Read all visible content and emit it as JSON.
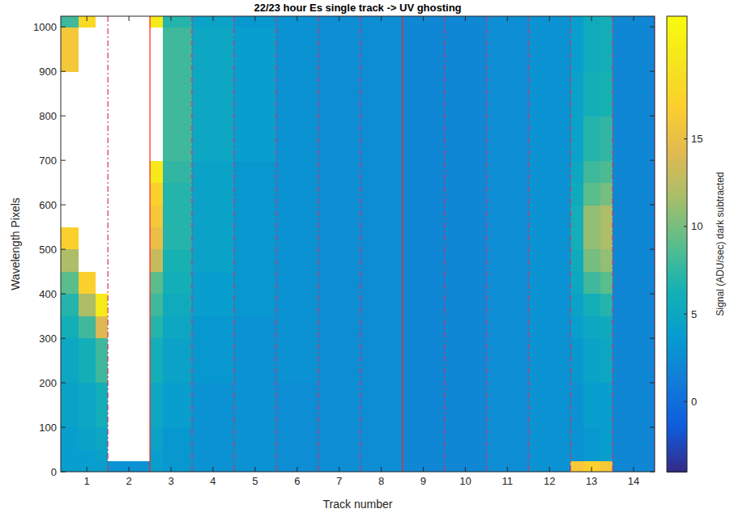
{
  "chart_data": {
    "type": "heatmap",
    "title": "22/23 hour Es single track -> UV ghosting",
    "x_label": "Track number",
    "y_label": "Wavelength Pixels",
    "colorbar_label": "Signal (ADU/sec) dark subtracted",
    "xlim": [
      0.38,
      14.5
    ],
    "ylim": [
      0,
      1024
    ],
    "xticks": [
      1,
      2,
      3,
      4,
      5,
      6,
      7,
      8,
      9,
      10,
      11,
      12,
      13,
      14
    ],
    "yticks": [
      0,
      100,
      200,
      300,
      400,
      500,
      600,
      700,
      800,
      900,
      1000
    ],
    "clim": [
      -4,
      22
    ],
    "cticks": [
      0,
      5,
      10,
      15
    ],
    "x_edges": [
      0.38,
      0.8,
      1.2,
      1.5,
      2.5,
      2.8,
      3.5,
      4.5,
      5.5,
      6.5,
      7.5,
      8.5,
      9.5,
      10.5,
      11.5,
      12.5,
      12.8,
      13.2,
      13.5,
      14.5
    ],
    "y_edges": [
      0,
      25,
      50,
      100,
      200,
      300,
      350,
      400,
      450,
      500,
      550,
      600,
      650,
      700,
      800,
      900,
      1000,
      1024
    ],
    "z": [
      [
        4,
        4,
        4,
        3,
        4,
        3.5,
        3,
        3,
        2.5,
        2.5,
        2.5,
        2,
        2,
        2.5,
        3,
        16,
        17,
        16,
        2
      ],
      [
        4,
        4,
        4.5,
        30,
        4,
        3.5,
        3,
        3,
        2.5,
        2.5,
        2.5,
        2,
        2,
        2.5,
        3,
        3,
        3.5,
        4,
        2
      ],
      [
        4,
        4.5,
        5,
        30,
        4.5,
        3.5,
        3,
        3,
        2.5,
        2.5,
        2.5,
        2,
        2,
        2.5,
        3,
        3,
        3.5,
        4,
        2
      ],
      [
        4.5,
        5,
        6,
        30,
        5,
        4,
        3,
        3,
        2.5,
        2.5,
        2.5,
        2,
        2,
        2.5,
        3,
        3,
        4,
        4,
        2
      ],
      [
        5,
        6,
        8,
        30,
        6,
        4.5,
        3.5,
        3,
        3,
        2.5,
        2.5,
        2,
        2,
        2.5,
        3,
        3.5,
        4.5,
        5,
        2
      ],
      [
        6,
        8,
        14,
        30,
        7,
        5,
        3.5,
        3,
        3,
        2.5,
        2.5,
        2,
        2,
        2.5,
        3,
        4,
        5,
        5.5,
        2
      ],
      [
        7,
        12,
        20,
        30,
        8,
        5.5,
        4,
        3.5,
        3,
        2.5,
        2.5,
        2,
        2,
        2.5,
        3,
        4.5,
        6,
        7,
        2
      ],
      [
        9,
        17,
        30,
        30,
        9,
        6,
        4,
        3.5,
        3,
        2.5,
        2.5,
        2,
        2,
        2.5,
        3,
        5,
        8,
        9,
        2
      ],
      [
        12,
        30,
        30,
        30,
        13,
        6.5,
        4.5,
        3.5,
        3,
        2.5,
        2.5,
        2,
        2,
        2.5,
        3,
        5.5,
        10,
        11,
        2
      ],
      [
        17,
        30,
        30,
        30,
        15,
        7,
        4.5,
        3.5,
        3,
        2.5,
        2.5,
        2,
        2,
        2.5,
        3,
        6,
        11,
        12,
        2
      ],
      [
        30,
        30,
        30,
        30,
        16,
        7,
        4.5,
        3.5,
        3,
        2.5,
        2.5,
        2,
        2,
        2.5,
        3,
        6,
        11,
        12,
        2
      ],
      [
        30,
        30,
        30,
        30,
        17,
        7,
        4.5,
        3.5,
        3,
        2.5,
        2.5,
        2,
        2,
        2.5,
        3,
        5.5,
        9,
        10,
        2
      ],
      [
        30,
        30,
        30,
        30,
        20,
        7.5,
        4.5,
        3.5,
        3,
        2.5,
        2.5,
        2,
        2,
        2.5,
        3,
        5,
        8,
        8.5,
        2
      ],
      [
        30,
        30,
        30,
        30,
        30,
        8,
        5,
        4,
        3,
        2.5,
        2.5,
        2,
        2,
        2.5,
        3,
        4.5,
        7,
        7.5,
        2
      ],
      [
        30,
        30,
        30,
        30,
        30,
        8,
        5,
        4,
        3,
        2.5,
        2.5,
        2,
        2,
        2.5,
        3,
        4.5,
        6,
        6.5,
        2
      ],
      [
        16,
        30,
        30,
        30,
        30,
        8,
        5,
        4,
        3,
        2.5,
        2.5,
        2,
        2,
        2.5,
        3,
        4,
        5.5,
        6,
        2
      ],
      [
        8,
        18,
        30,
        30,
        20,
        7,
        4.5,
        3.5,
        3,
        2.5,
        2.5,
        2,
        2,
        2.5,
        3,
        4,
        5.5,
        6,
        2
      ]
    ],
    "boundaries": [
      {
        "value": 1.5,
        "line_style": "dashed",
        "color": "#d8306a"
      },
      {
        "value": 2.5,
        "line_style": "solid",
        "color": "#ff2020"
      },
      {
        "value": 3.5,
        "line_style": "dashed",
        "color": "#d8306a"
      },
      {
        "value": 4.5,
        "line_style": "dashed",
        "color": "#d8306a"
      },
      {
        "value": 5.5,
        "line_style": "dashed",
        "color": "#d8306a"
      },
      {
        "value": 6.5,
        "line_style": "dashed",
        "color": "#d8306a"
      },
      {
        "value": 7.5,
        "line_style": "dashed",
        "color": "#d8306a"
      },
      {
        "value": 8.5,
        "line_style": "solid",
        "color": "#ff2020"
      },
      {
        "value": 9.5,
        "line_style": "dashed",
        "color": "#d8306a"
      },
      {
        "value": 10.5,
        "line_style": "dashed",
        "color": "#d8306a"
      },
      {
        "value": 11.5,
        "line_style": "dashed",
        "color": "#d8306a"
      },
      {
        "value": 12.5,
        "line_style": "dashed",
        "color": "#d8306a"
      },
      {
        "value": 13.5,
        "line_style": "dashed",
        "color": "#d8306a"
      },
      {
        "value": 14.5,
        "line_style": "dashed",
        "color": "#ff00ff"
      }
    ]
  }
}
